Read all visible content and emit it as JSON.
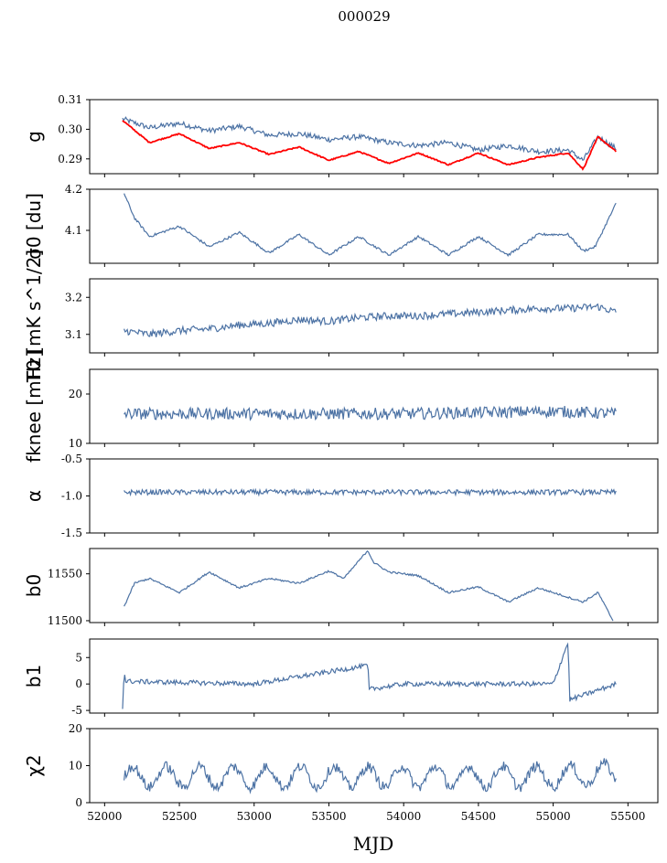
{
  "figure": {
    "title": "000029",
    "xlabel": "MJD"
  },
  "chart_data": [
    {
      "type": "line",
      "ylabel": "g",
      "ylim": [
        0.285,
        0.31
      ],
      "yticks": [
        "0.29",
        "0.30",
        "0.31"
      ],
      "ytick_values": [
        0.29,
        0.3,
        0.31
      ],
      "series": [
        {
          "color": "#4c72a4",
          "x": [
            52120,
            52300,
            52500,
            52700,
            52900,
            53100,
            53300,
            53500,
            53700,
            53900,
            54100,
            54300,
            54500,
            54700,
            54900,
            55100,
            55200,
            55300,
            55420
          ],
          "y": [
            0.3035,
            0.3005,
            0.302,
            0.2995,
            0.301,
            0.298,
            0.2985,
            0.2965,
            0.2975,
            0.2955,
            0.2945,
            0.2955,
            0.293,
            0.2945,
            0.2925,
            0.293,
            0.2895,
            0.2975,
            0.2935
          ]
        },
        {
          "color": "#ff0000",
          "x": [
            52120,
            52300,
            52500,
            52700,
            52900,
            53100,
            53300,
            53500,
            53700,
            53900,
            54100,
            54300,
            54500,
            54700,
            54900,
            55100,
            55200,
            55300,
            55420
          ],
          "y": [
            0.303,
            0.2955,
            0.2985,
            0.2935,
            0.2955,
            0.2915,
            0.294,
            0.2895,
            0.2925,
            0.2885,
            0.292,
            0.288,
            0.292,
            0.288,
            0.2905,
            0.292,
            0.2865,
            0.2975,
            0.2925
          ]
        }
      ]
    },
    {
      "type": "line",
      "ylabel": "σ0 [du]",
      "ylim": [
        4.02,
        4.2
      ],
      "yticks": [
        "4.1",
        "4.2"
      ],
      "ytick_values": [
        4.1,
        4.2
      ],
      "series": [
        {
          "color": "#4c72a4",
          "x": [
            52130,
            52200,
            52300,
            52500,
            52700,
            52900,
            53100,
            53300,
            53500,
            53700,
            53900,
            54100,
            54300,
            54500,
            54700,
            54900,
            55100,
            55200,
            55280,
            55420
          ],
          "y": [
            4.19,
            4.13,
            4.085,
            4.11,
            4.06,
            4.095,
            4.045,
            4.09,
            4.04,
            4.085,
            4.04,
            4.085,
            4.04,
            4.085,
            4.04,
            4.09,
            4.09,
            4.05,
            4.06,
            4.165
          ]
        }
      ]
    },
    {
      "type": "line",
      "ylabel": "T0 [mK s^1/2]",
      "ylim": [
        3.05,
        3.25
      ],
      "yticks": [
        "3.1",
        "3.2"
      ],
      "ytick_values": [
        3.1,
        3.2
      ],
      "series": [
        {
          "color": "#4c72a4",
          "x": [
            52130,
            52300,
            52500,
            52700,
            52900,
            53100,
            53300,
            53500,
            53700,
            53900,
            54100,
            54300,
            54500,
            54700,
            54900,
            55100,
            55300,
            55420
          ],
          "y": [
            3.11,
            3.1,
            3.11,
            3.115,
            3.125,
            3.13,
            3.14,
            3.135,
            3.145,
            3.15,
            3.15,
            3.155,
            3.16,
            3.165,
            3.17,
            3.17,
            3.175,
            3.16
          ]
        }
      ]
    },
    {
      "type": "line",
      "ylabel": "fknee [mHz]",
      "ylim": [
        10,
        25
      ],
      "yticks": [
        "10",
        "20"
      ],
      "ytick_values": [
        10,
        20
      ],
      "series": [
        {
          "color": "#4c72a4",
          "x": [
            52130,
            53000,
            54000,
            55000,
            55420
          ],
          "y": [
            16,
            16,
            16,
            16.5,
            16
          ]
        }
      ]
    },
    {
      "type": "line",
      "ylabel": "α",
      "ylim": [
        -1.5,
        -0.5
      ],
      "yticks": [
        "-1.5",
        "-1.0",
        "-0.5"
      ],
      "ytick_values": [
        -1.5,
        -1.0,
        -0.5
      ],
      "series": [
        {
          "color": "#4c72a4",
          "x": [
            52130,
            53000,
            54000,
            55000,
            55420
          ],
          "y": [
            -0.95,
            -0.95,
            -0.95,
            -0.95,
            -0.95
          ]
        }
      ]
    },
    {
      "type": "line",
      "ylabel": "b0",
      "ylim": [
        11498,
        11577
      ],
      "yticks": [
        "11500",
        "11550"
      ],
      "ytick_values": [
        11500,
        11550
      ],
      "series": [
        {
          "color": "#4c72a4",
          "x": [
            52130,
            52200,
            52300,
            52500,
            52700,
            52900,
            53100,
            53300,
            53500,
            53600,
            53760,
            53800,
            53900,
            54100,
            54300,
            54500,
            54700,
            54900,
            55100,
            55200,
            55300,
            55400
          ],
          "y": [
            11515,
            11540,
            11545,
            11530,
            11552,
            11535,
            11545,
            11540,
            11553,
            11545,
            11575,
            11562,
            11552,
            11548,
            11530,
            11536,
            11520,
            11535,
            11525,
            11520,
            11530,
            11500
          ]
        }
      ]
    },
    {
      "type": "line",
      "ylabel": "b1",
      "ylim": [
        -5.5,
        8.5
      ],
      "yticks": [
        "-5",
        "0",
        "5"
      ],
      "ytick_values": [
        -5,
        0,
        5
      ],
      "series": [
        {
          "color": "#4c72a4",
          "x": [
            52120,
            52130,
            52140,
            53000,
            53760,
            53770,
            54000,
            55000,
            55100,
            55110,
            55420
          ],
          "y": [
            -4.5,
            2.5,
            0.5,
            0,
            3.5,
            -1,
            0,
            0,
            8,
            -3,
            0
          ]
        }
      ]
    },
    {
      "type": "line",
      "ylabel": "χ2",
      "ylim": [
        0,
        20
      ],
      "yticks": [
        "0",
        "10",
        "20"
      ],
      "ytick_values": [
        0,
        10,
        20
      ],
      "series": [
        {
          "color": "#4c72a4",
          "x": [
            52130,
            53000,
            54000,
            55000,
            55420
          ],
          "y": [
            7,
            7,
            7,
            7,
            8
          ]
        }
      ]
    }
  ],
  "xaxis": {
    "xlim": [
      51900,
      55700
    ],
    "ticks": [
      "52000",
      "52500",
      "53000",
      "53500",
      "54000",
      "54500",
      "55000",
      "55500"
    ],
    "tick_values": [
      52000,
      52500,
      53000,
      53500,
      54000,
      54500,
      55000,
      55500
    ]
  }
}
